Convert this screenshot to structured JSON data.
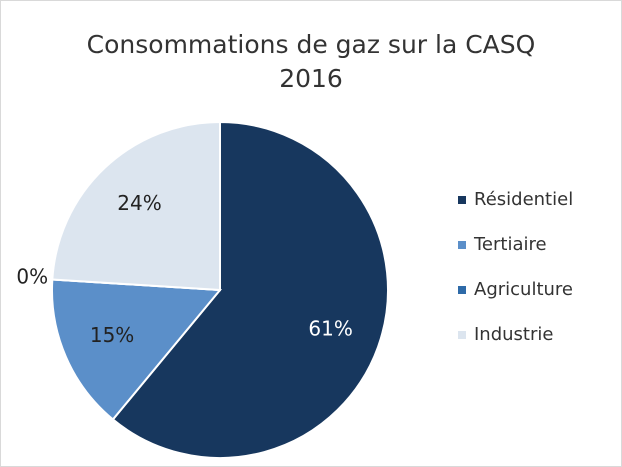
{
  "chart_data": {
    "type": "pie",
    "title": [
      "Consommations de gaz sur la CASQ",
      "2016"
    ],
    "categories": [
      "Résidentiel",
      "Tertiaire",
      "Agriculture",
      "Industrie"
    ],
    "values": [
      61,
      15,
      0,
      24
    ],
    "value_labels": [
      "61%",
      "15%",
      "0%",
      "24%"
    ],
    "colors": [
      "#17375e",
      "#5b8fc9",
      "#2e6aa8",
      "#dce5ef"
    ],
    "label_colors": [
      "#ffffff",
      "#222222",
      "#222222",
      "#222222"
    ],
    "legend": "right"
  }
}
